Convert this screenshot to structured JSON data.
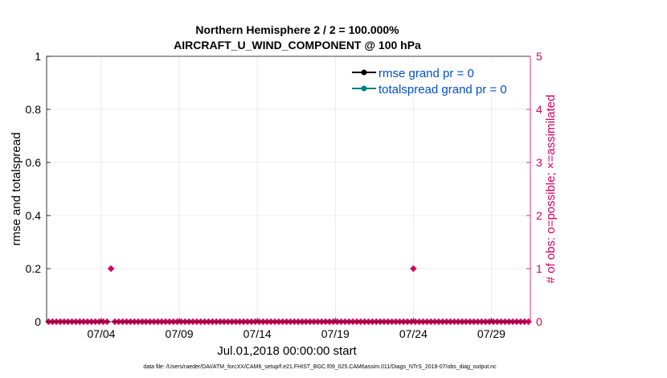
{
  "chart_data": {
    "type": "scatter",
    "title_line1": "Northern Hemisphere 2 / 2 = 100.000%",
    "title_line2": "AIRCRAFT_U_WIND_COMPONENT @ 100 hPa",
    "xlabel": "Jul.01,2018 00:00:00 start",
    "ylabel_left": "rmse and totalspread",
    "ylabel_right": "# of obs: o=possible; ×=assimilated",
    "footer": "data file: /Users/raeder/DAI/ATM_forcXX/CAM6_setup/f.e21.FHIST_BGC.f09_025.CAM6assim.011/Diags_NTrS_2018-07/obs_diag_output.nc",
    "xlim": [
      0.5,
      31.5
    ],
    "x_ticks": [
      {
        "value": 4,
        "label": "07/04"
      },
      {
        "value": 9,
        "label": "07/09"
      },
      {
        "value": 14,
        "label": "07/14"
      },
      {
        "value": 19,
        "label": "07/19"
      },
      {
        "value": 24,
        "label": "07/24"
      },
      {
        "value": 29,
        "label": "07/29"
      }
    ],
    "ylim_left": [
      0,
      1
    ],
    "y_ticks_left": [
      {
        "value": 0,
        "label": "0"
      },
      {
        "value": 0.2,
        "label": "0.2"
      },
      {
        "value": 0.4,
        "label": "0.4"
      },
      {
        "value": 0.6,
        "label": "0.6"
      },
      {
        "value": 0.8,
        "label": "0.8"
      },
      {
        "value": 1,
        "label": "1"
      }
    ],
    "ylim_right": [
      0,
      5
    ],
    "y_ticks_right": [
      {
        "value": 0,
        "label": "0"
      },
      {
        "value": 1,
        "label": "1"
      },
      {
        "value": 2,
        "label": "2"
      },
      {
        "value": 3,
        "label": "3"
      },
      {
        "value": 4,
        "label": "4"
      },
      {
        "value": 5,
        "label": "5"
      }
    ],
    "grid": true,
    "legend_position": "top-right",
    "series": [
      {
        "name": "rmse grand pr = 0",
        "color": "#000000",
        "values": []
      },
      {
        "name": "totalspread grand pr = 0",
        "color": "#008080",
        "values": []
      }
    ],
    "obs_possible": {
      "name": "possible",
      "color": "#d6005e",
      "x_start": 0.625,
      "x_step": 0.25,
      "count": 124,
      "nonzero": [
        {
          "x": 4.625,
          "y": 1
        },
        {
          "x": 24.0,
          "y": 1
        }
      ]
    },
    "colors": {
      "axis": "#000000",
      "right_axis": "#d6005e",
      "legend_text": "#0050c8",
      "grid": "#e6e6e6"
    }
  }
}
